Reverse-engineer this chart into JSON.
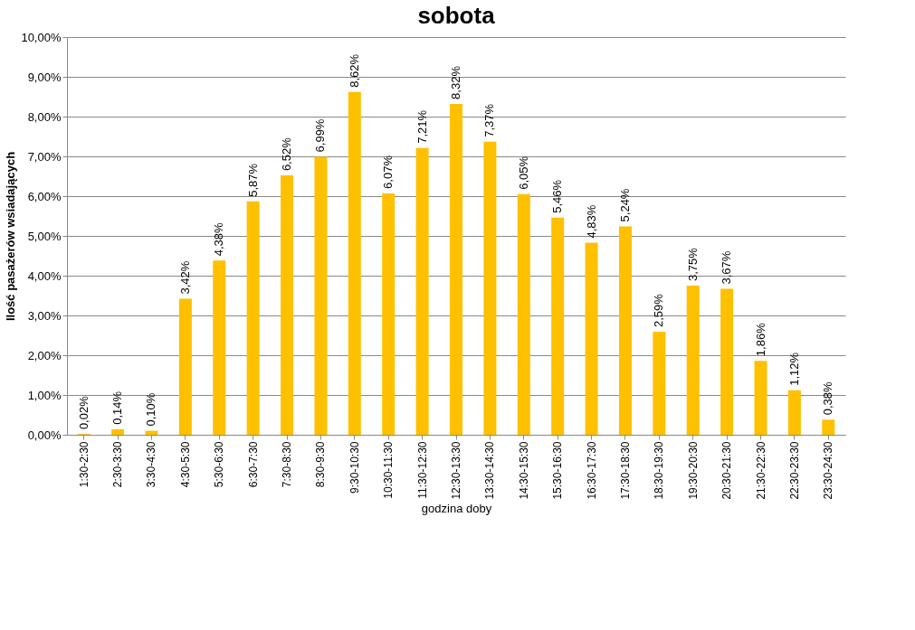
{
  "chart_data": {
    "type": "bar",
    "title": "sobota",
    "xlabel": "godzina doby",
    "ylabel": "Ilość pasażerów wsiadających",
    "categories": [
      "1:30-2:30",
      "2:30-3:30",
      "3:30-4:30",
      "4:30-5:30",
      "5:30-6:30",
      "6:30-7:30",
      "7:30-8:30",
      "8:30-9:30",
      "9:30-10:30",
      "10:30-11:30",
      "11:30-12:30",
      "12:30-13:30",
      "13:30-14:30",
      "14:30-15:30",
      "15:30-16:30",
      "16:30-17:30",
      "17:30-18:30",
      "18:30-19:30",
      "19:30-20:30",
      "20:30-21:30",
      "21:30-22:30",
      "22:30-23:30",
      "23:30-24:30"
    ],
    "values": [
      0.02,
      0.14,
      0.1,
      3.42,
      4.38,
      5.87,
      6.52,
      6.99,
      8.62,
      6.07,
      7.21,
      8.32,
      7.37,
      6.05,
      5.46,
      4.83,
      5.24,
      2.59,
      3.75,
      3.67,
      1.86,
      1.12,
      0.38
    ],
    "value_labels": [
      "0,02%",
      "0,14%",
      "0,10%",
      "3,42%",
      "4,38%",
      "5,87%",
      "6,52%",
      "6,99%",
      "8,62%",
      "6,07%",
      "7,21%",
      "8,32%",
      "7,37%",
      "6,05%",
      "5,46%",
      "4,83%",
      "5,24%",
      "2,59%",
      "3,75%",
      "3,67%",
      "1,86%",
      "1,12%",
      "0,38%"
    ],
    "color": "#ffc000",
    "ylim": [
      0,
      10
    ],
    "yticks": [
      {
        "value": 0,
        "label": "0,00%"
      },
      {
        "value": 1,
        "label": "1,00%"
      },
      {
        "value": 2,
        "label": "2,00%"
      },
      {
        "value": 3,
        "label": "3,00%"
      },
      {
        "value": 4,
        "label": "4,00%"
      },
      {
        "value": 5,
        "label": "5,00%"
      },
      {
        "value": 6,
        "label": "6,00%"
      },
      {
        "value": 7,
        "label": "7,00%"
      },
      {
        "value": 8,
        "label": "8,00%"
      },
      {
        "value": 9,
        "label": "9,00%"
      },
      {
        "value": 10,
        "label": "10,00%"
      }
    ],
    "grid": "y"
  }
}
